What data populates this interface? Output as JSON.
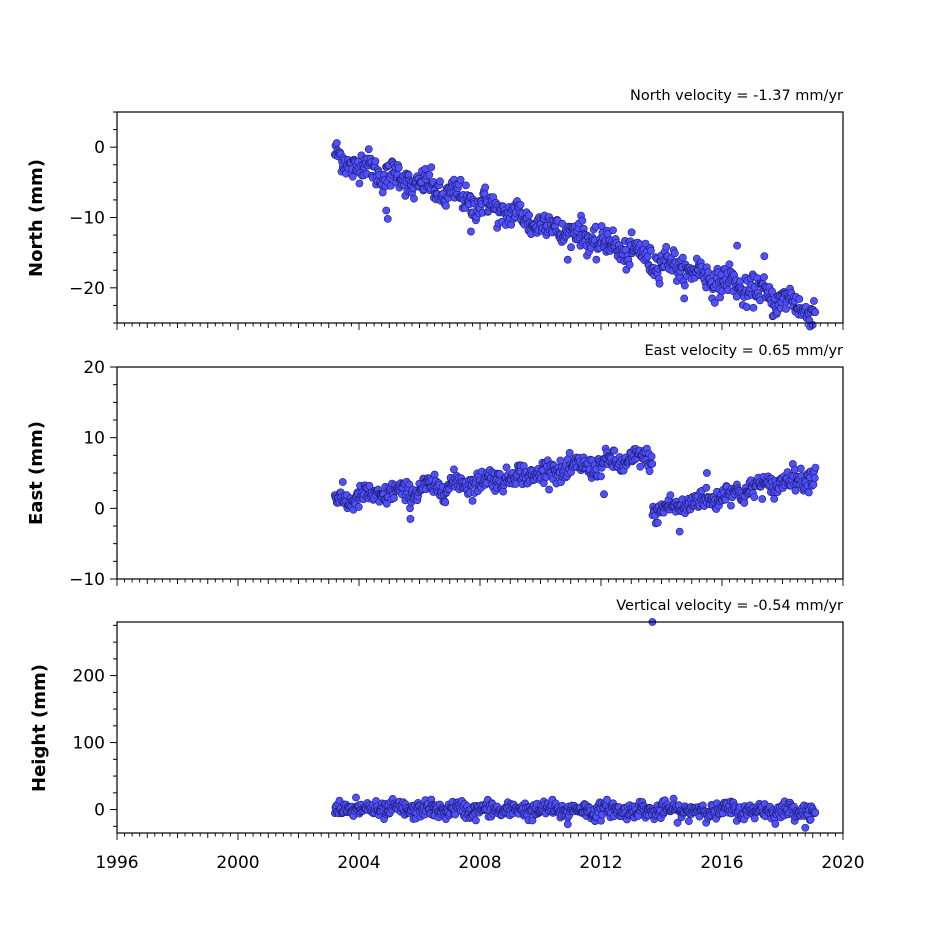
{
  "chart_data": [
    {
      "type": "scatter",
      "name_key": "north",
      "subtitle": "North velocity = -1.37 mm/yr",
      "ylabel": "North (mm)",
      "xlim": [
        1996,
        2020
      ],
      "ylim": [
        -25,
        5
      ],
      "yticks": [
        0,
        -10,
        -20
      ],
      "yminor_step": 2.5,
      "velocity_mm_per_yr": -1.37,
      "marker_color": "#5050ff",
      "data_range": [
        2003.2,
        2019.1
      ],
      "approx_start_value": -1.5,
      "outliers": [
        {
          "x": 2004.9,
          "y": -9
        },
        {
          "x": 2004.95,
          "y": -10.2
        },
        {
          "x": 2007.7,
          "y": -12
        },
        {
          "x": 2016.5,
          "y": -14
        },
        {
          "x": 2017.4,
          "y": -15.5
        }
      ]
    },
    {
      "type": "scatter",
      "name_key": "east",
      "subtitle": "East velocity = 0.65 mm/yr",
      "ylabel": "East (mm)",
      "xlim": [
        1996,
        2020
      ],
      "ylim": [
        -10,
        20
      ],
      "yticks": [
        20,
        10,
        0,
        -10
      ],
      "yminor_step": 2.5,
      "velocity_mm_per_yr": 0.65,
      "marker_color": "#5050ff",
      "segments": [
        {
          "x_range": [
            2003.2,
            2013.7
          ],
          "y_start": 1.0,
          "y_end": 7.2
        },
        {
          "x_range": [
            2013.7,
            2019.1
          ],
          "y_start": -0.5,
          "y_end": 4.8
        }
      ],
      "outliers": [
        {
          "x": 2005.7,
          "y": -1.5
        },
        {
          "x": 2012.1,
          "y": 2
        },
        {
          "x": 2014.6,
          "y": -3.3
        },
        {
          "x": 2015.5,
          "y": 5
        }
      ]
    },
    {
      "type": "scatter",
      "name_key": "height",
      "subtitle": "Vertical velocity = -0.54 mm/yr",
      "ylabel": "Height (mm)",
      "xlim": [
        1996,
        2020
      ],
      "ylim": [
        -35,
        280
      ],
      "yticks": [
        200,
        100,
        0
      ],
      "yminor_step": 25,
      "velocity_mm_per_yr": -0.54,
      "marker_color": "#5050ff",
      "data_range": [
        2003.2,
        2019.1
      ],
      "approx_start_value": 0,
      "outliers": [
        {
          "x": 2013.7,
          "y": 280
        },
        {
          "x": 2003.9,
          "y": 18
        },
        {
          "x": 2010.9,
          "y": -22
        }
      ]
    }
  ],
  "x_axis": {
    "tick_labels": [
      "1996",
      "2000",
      "2004",
      "2008",
      "2012",
      "2016",
      "2020"
    ],
    "tick_values": [
      1996,
      2000,
      2004,
      2008,
      2012,
      2016,
      2020
    ],
    "minor_step_years": 0.25
  }
}
